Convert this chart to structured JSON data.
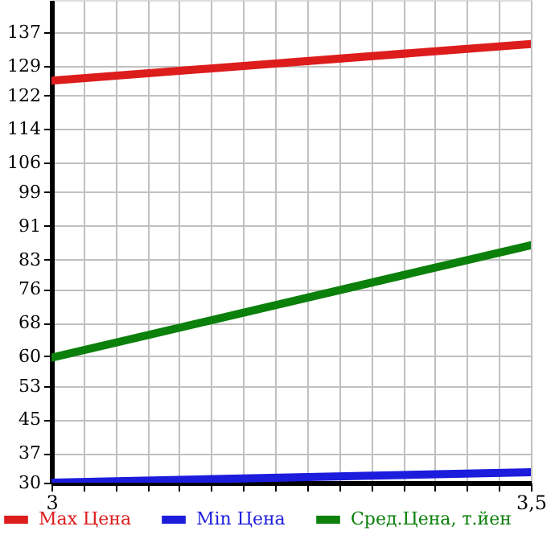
{
  "chart_data": {
    "type": "line",
    "x": [
      3,
      3.5
    ],
    "series": [
      {
        "name": "Max Цена",
        "color": "#dd1c1c",
        "values": [
          125.5,
          134.2
        ]
      },
      {
        "name": "Min Цена",
        "color": "#1c1cdd",
        "values": [
          30,
          32.5
        ]
      },
      {
        "name": "Сред.Цена, т.йен",
        "color": "#0b800b",
        "values": [
          59.7,
          86.4
        ]
      }
    ],
    "xlim": [
      3,
      3.5
    ],
    "xticks": [
      3,
      {
        "value": 3.0333,
        "label": null
      },
      {
        "value": 3.0667,
        "label": null
      },
      {
        "value": 3.1,
        "label": null
      },
      {
        "value": 3.1333,
        "label": null
      },
      {
        "value": 3.1667,
        "label": null
      },
      {
        "value": 3.2,
        "label": null
      },
      {
        "value": 3.2333,
        "label": null
      },
      {
        "value": 3.2667,
        "label": null
      },
      {
        "value": 3.3,
        "label": null
      },
      {
        "value": 3.3333,
        "label": null
      },
      {
        "value": 3.3667,
        "label": null
      },
      {
        "value": 3.4,
        "label": null
      },
      {
        "value": 3.4333,
        "label": null
      },
      {
        "value": 3.4667,
        "label": null
      },
      {
        "value": 3.5,
        "label": "3,5"
      }
    ],
    "ylim": [
      30,
      144.643
    ],
    "yticks": [
      30,
      37,
      45,
      53,
      60,
      68,
      76,
      83,
      91,
      99,
      106,
      114,
      122,
      129,
      137
    ],
    "grid": true,
    "legend": "bottom",
    "marker": "none",
    "line_style": "solid"
  }
}
